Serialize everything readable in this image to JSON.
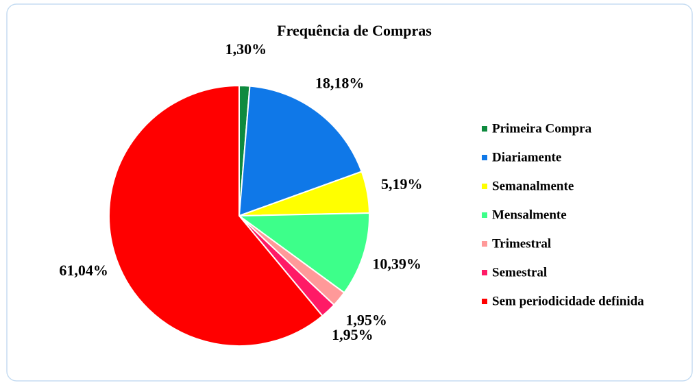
{
  "chart_data": {
    "type": "pie",
    "title": "Frequência de Compras",
    "categories": [
      "Primeira Compra",
      "Diariamente",
      "Semanalmente",
      "Mensalmente",
      "Trimestral",
      "Semestral",
      "Sem periodicidade definida"
    ],
    "values": [
      1.3,
      18.18,
      5.19,
      10.39,
      1.95,
      1.95,
      61.04
    ],
    "value_labels": [
      "1,30%",
      "18,18%",
      "5,19%",
      "10,39%",
      "1,95%",
      "1,95%",
      "61,04%"
    ],
    "colors": [
      "#0e8a3e",
      "#0f78e8",
      "#ffff00",
      "#3dff8a",
      "#ff9999",
      "#ff1a66",
      "#ff0000"
    ],
    "legend": "right"
  }
}
